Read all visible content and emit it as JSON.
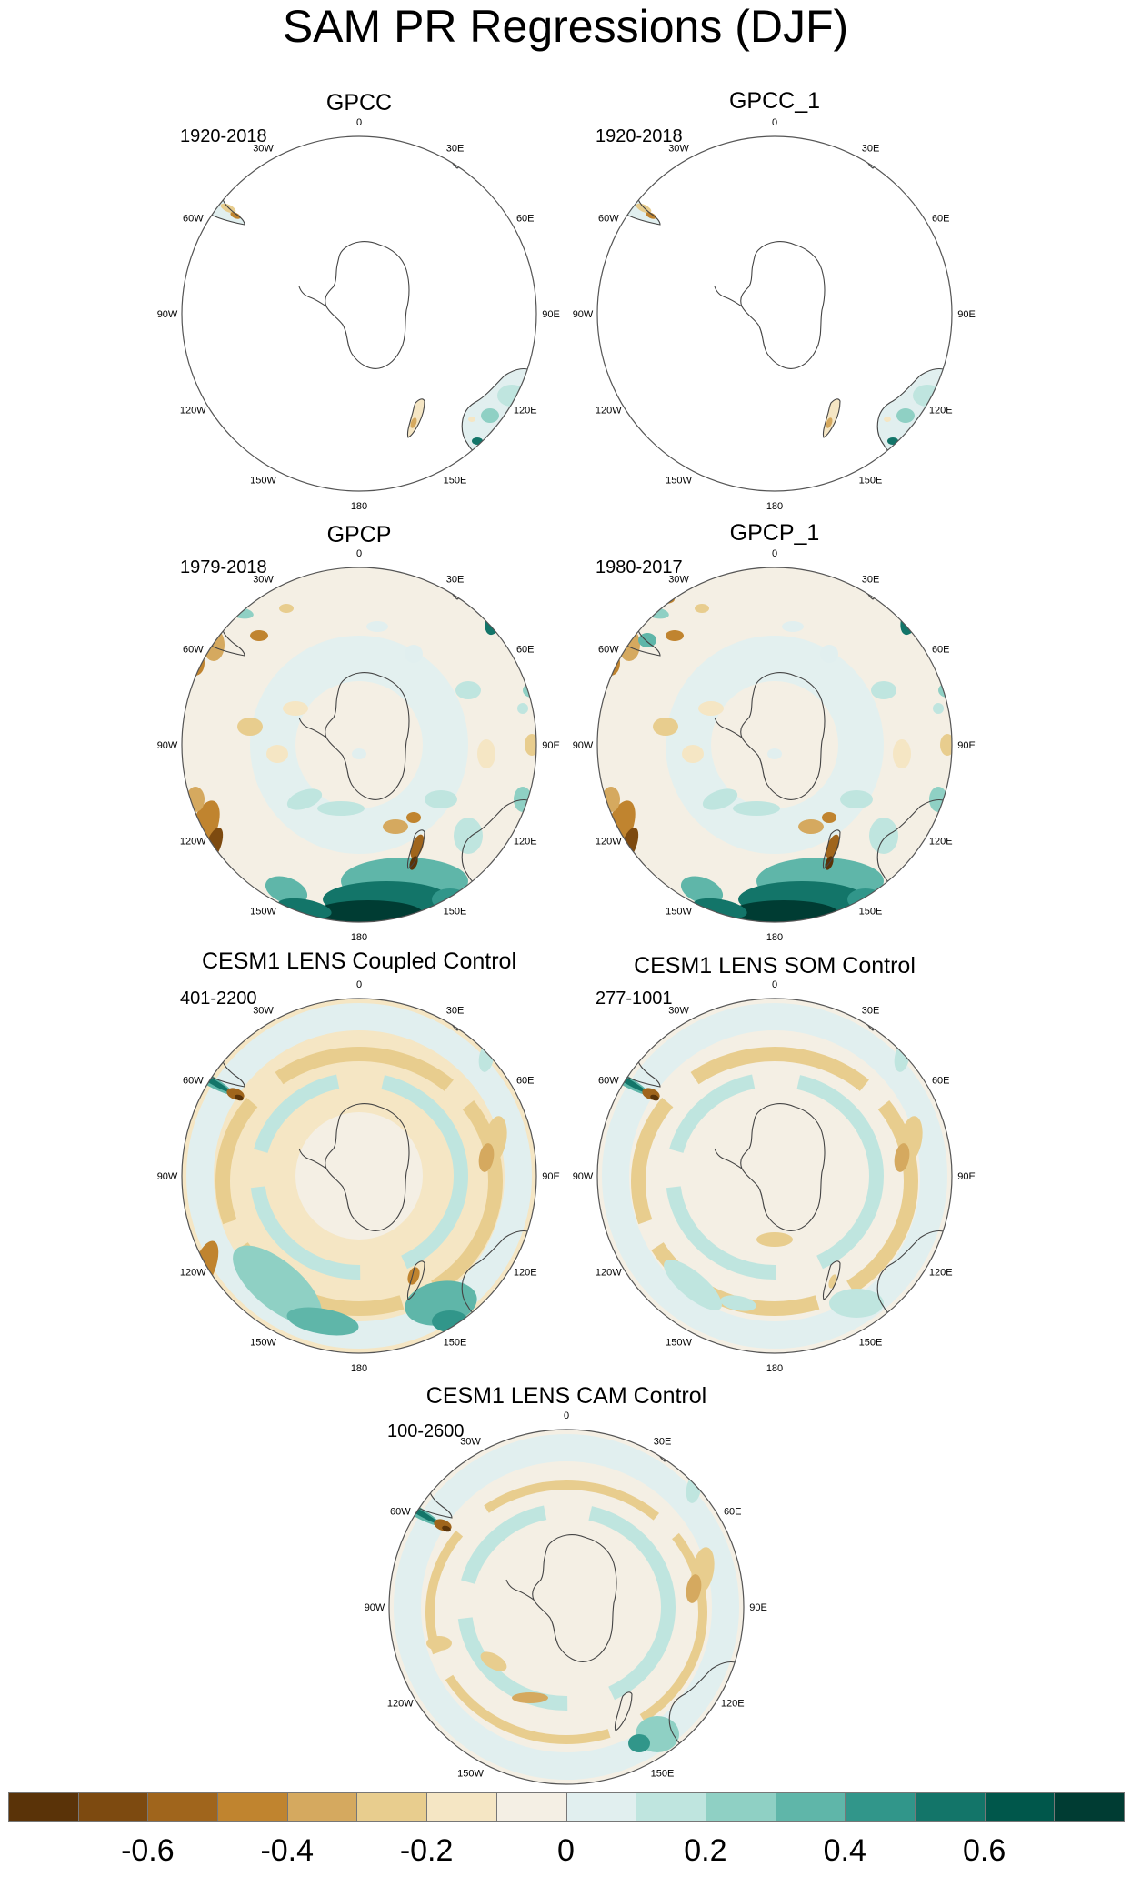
{
  "title": "SAM PR Regressions (DJF)",
  "lon_labels": [
    "0",
    "30E",
    "60E",
    "90E",
    "120E",
    "150E",
    "180",
    "150W",
    "120W",
    "90W",
    "60W",
    "30W"
  ],
  "panels": [
    {
      "id": "gpcc",
      "title": "GPCC",
      "period": "1920-2018",
      "coverage": "land"
    },
    {
      "id": "gpcc_1",
      "title": "GPCC_1",
      "period": "1920-2018",
      "coverage": "land"
    },
    {
      "id": "gpcp",
      "title": "GPCP",
      "period": "1979-2018",
      "coverage": "full"
    },
    {
      "id": "gpcp_1",
      "title": "GPCP_1",
      "period": "1980-2017",
      "coverage": "full"
    },
    {
      "id": "coupled",
      "title": "CESM1 LENS Coupled Control",
      "period": "401-2200",
      "coverage": "full"
    },
    {
      "id": "som",
      "title": "CESM1 LENS SOM Control",
      "period": "277-1001",
      "coverage": "full"
    },
    {
      "id": "cam",
      "title": "CESM1 LENS CAM Control",
      "period": "100-2600",
      "coverage": "full"
    }
  ],
  "colorbar": {
    "colors": [
      "#5a3308",
      "#7d4a10",
      "#a0651c",
      "#c0842f",
      "#d5a95f",
      "#e8cd8e",
      "#f5e6c4",
      "#f4efe4",
      "#e1efef",
      "#bfe5df",
      "#8fd0c4",
      "#5fb6a9",
      "#31968a",
      "#137569",
      "#00574b",
      "#003c33"
    ],
    "tick_labels": [
      "-0.6",
      "-0.4",
      "-0.2",
      "0",
      "0.2",
      "0.4",
      "0.6"
    ],
    "tick_values": [
      -0.6,
      -0.4,
      -0.2,
      0,
      0.2,
      0.4,
      0.6
    ]
  }
}
